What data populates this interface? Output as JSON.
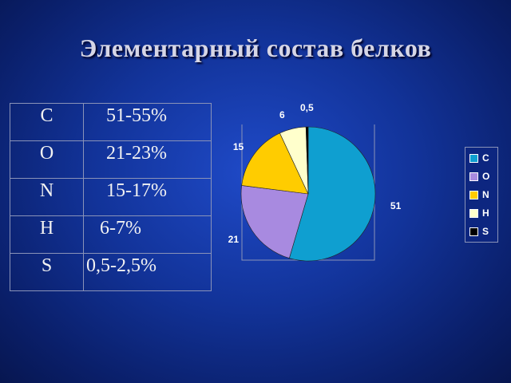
{
  "title": "Элементарный состав белков",
  "table": {
    "rows": [
      {
        "element": "C",
        "value": "51-55%"
      },
      {
        "element": "O",
        "value": "21-23%"
      },
      {
        "element": "N",
        "value": "15-17%"
      },
      {
        "element": "H",
        "value": "6-7%"
      },
      {
        "element": "S",
        "value": "0,5-2,5%"
      }
    ]
  },
  "chart_data": {
    "type": "pie",
    "categories": [
      "C",
      "O",
      "N",
      "H",
      "S"
    ],
    "values": [
      51,
      21,
      15,
      6,
      0.5
    ],
    "data_labels": [
      "51",
      "21",
      "15",
      "6",
      "0,5"
    ],
    "colors": [
      "#0f9fd0",
      "#a88ae0",
      "#ffcc00",
      "#ffffcc",
      "#000000"
    ],
    "legend": {
      "position": "right",
      "entries": [
        {
          "label": "C",
          "color": "#0f9fd0"
        },
        {
          "label": "O",
          "color": "#a88ae0"
        },
        {
          "label": "N",
          "color": "#ffcc00"
        },
        {
          "label": "H",
          "color": "#ffffcc"
        },
        {
          "label": "S",
          "color": "#000000"
        }
      ]
    },
    "start_angle_deg": 0,
    "direction": "clockwise"
  }
}
